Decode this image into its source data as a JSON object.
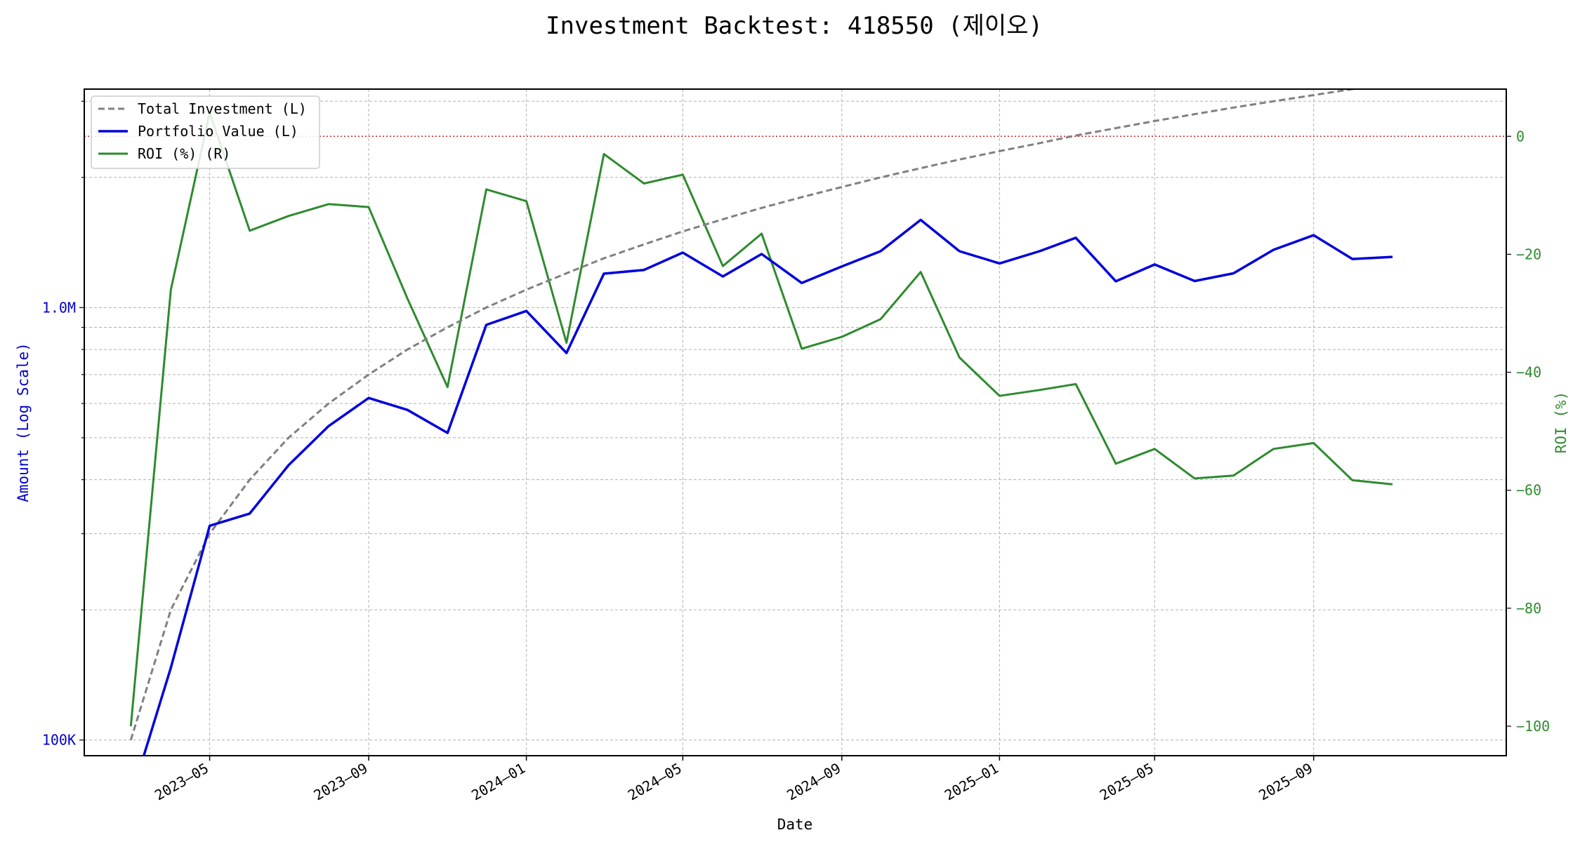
{
  "chart_data": {
    "type": "line",
    "title": "Investment Backtest: 418550 (제이오)",
    "xlabel": "Date",
    "ylabel_left": "Amount (Log Scale)",
    "ylabel_right": "ROI (%)",
    "left_scale": "log",
    "left_ylim": [
      92000,
      3200000
    ],
    "right_ylim": [
      -105,
      8
    ],
    "xlim": [
      "2023-01-24",
      "2026-01-28"
    ],
    "grid": true,
    "legend_position": "top-left",
    "left_ticks": [
      {
        "value": 100000,
        "label": "100K"
      },
      {
        "value": 1000000,
        "label": "1.0M"
      }
    ],
    "right_ticks": [
      {
        "value": 0,
        "label": "0"
      },
      {
        "value": -20,
        "label": "−20"
      },
      {
        "value": -40,
        "label": "−40"
      },
      {
        "value": -60,
        "label": "−60"
      },
      {
        "value": -80,
        "label": "−80"
      },
      {
        "value": -100,
        "label": "−100"
      }
    ],
    "x_ticks": [
      {
        "date": "2023-05-01",
        "label": "2023–05"
      },
      {
        "date": "2023-09-01",
        "label": "2023–09"
      },
      {
        "date": "2024-01-01",
        "label": "2024–01"
      },
      {
        "date": "2024-05-01",
        "label": "2024–05"
      },
      {
        "date": "2024-09-01",
        "label": "2024–09"
      },
      {
        "date": "2025-01-01",
        "label": "2025–01"
      },
      {
        "date": "2025-05-01",
        "label": "2025–05"
      },
      {
        "date": "2025-09-01",
        "label": "2025–09"
      }
    ],
    "x": [
      "2023-03-01",
      "2023-04-01",
      "2023-05-01",
      "2023-06-01",
      "2023-07-01",
      "2023-08-01",
      "2023-09-01",
      "2023-10-01",
      "2023-11-01",
      "2023-12-01",
      "2024-01-01",
      "2024-02-01",
      "2024-03-01",
      "2024-04-01",
      "2024-05-01",
      "2024-06-01",
      "2024-07-01",
      "2024-08-01",
      "2024-09-01",
      "2024-10-01",
      "2024-11-01",
      "2024-12-01",
      "2025-01-01",
      "2025-02-01",
      "2025-03-01",
      "2025-04-01",
      "2025-05-01",
      "2025-06-01",
      "2025-07-01",
      "2025-08-01",
      "2025-09-01",
      "2025-10-01",
      "2025-11-01"
    ],
    "series": [
      {
        "name": "Total Investment (L)",
        "axis": "left",
        "color": "#808080",
        "style": "dashed",
        "values": [
          100000,
          200000,
          300000,
          400000,
          500000,
          600000,
          700000,
          800000,
          900000,
          1000000,
          1100000,
          1200000,
          1300000,
          1400000,
          1500000,
          1600000,
          1700000,
          1800000,
          1900000,
          2000000,
          2100000,
          2200000,
          2300000,
          2400000,
          2500000,
          2600000,
          2700000,
          2800000,
          2900000,
          3000000,
          3100000,
          3200000,
          3300000
        ]
      },
      {
        "name": "Portfolio Value (L)",
        "axis": "left",
        "color": "#0000dd",
        "style": "solid",
        "values": [
          0,
          147000,
          313000,
          334000,
          432000,
          532000,
          618000,
          580000,
          513000,
          912000,
          982000,
          785000,
          1198000,
          1222000,
          1340000,
          1180000,
          1330000,
          1140000,
          1245000,
          1350000,
          1595000,
          1350000,
          1265000,
          1350000,
          1450000,
          1150000,
          1258000,
          1152000,
          1200000,
          1360000,
          1470000,
          1295000,
          1310000
        ]
      },
      {
        "name": "ROI (%) (R)",
        "axis": "right",
        "color": "#2e8b2e",
        "style": "solid",
        "values": [
          -100,
          -26,
          4,
          -16,
          -13.5,
          -11.5,
          -12,
          -27.5,
          -42.5,
          -9,
          -11,
          -35,
          -3,
          -8,
          -6.5,
          -22,
          -16.5,
          -36,
          -34,
          -31,
          -23,
          -37.5,
          -44,
          -43,
          -42,
          -55.5,
          -53,
          -58,
          -57.5,
          -53,
          -52,
          -58.3,
          -59
        ]
      }
    ],
    "reference_line": {
      "axis": "right",
      "value": 0,
      "color": "#cc2222",
      "style": "dotted"
    }
  }
}
